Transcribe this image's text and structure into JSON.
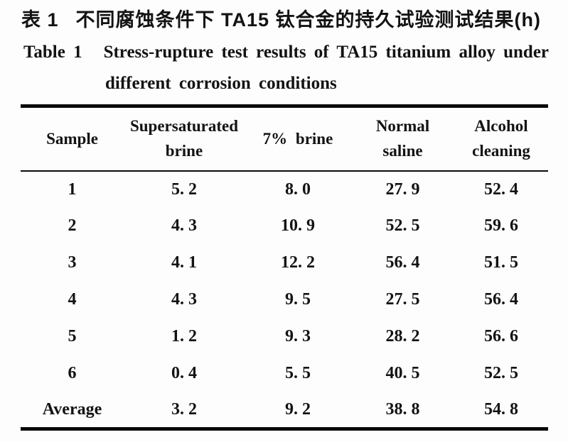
{
  "titles": {
    "zh_label": "表 1",
    "zh_text": "不同腐蚀条件下 TA15 钛合金的持久试验测试结果(h)",
    "en_label": "Table 1",
    "en_line1": "Stress-rupture test results of TA15 titanium alloy under",
    "en_line2": "different corrosion conditions"
  },
  "table": {
    "columns": [
      {
        "label": "Sample"
      },
      {
        "label": "Supersaturated\nbrine"
      },
      {
        "label": "7% brine"
      },
      {
        "label": "Normal\nsaline"
      },
      {
        "label": "Alcohol\ncleaning"
      }
    ],
    "rows": [
      {
        "sample": "1",
        "values": [
          "5. 2",
          "8. 0",
          "27. 9",
          "52. 4"
        ]
      },
      {
        "sample": "2",
        "values": [
          "4. 3",
          "10. 9",
          "52. 5",
          "59. 6"
        ]
      },
      {
        "sample": "3",
        "values": [
          "4. 1",
          "12. 2",
          "56. 4",
          "51. 5"
        ]
      },
      {
        "sample": "4",
        "values": [
          "4. 3",
          "9. 5",
          "27. 5",
          "56. 4"
        ]
      },
      {
        "sample": "5",
        "values": [
          "1. 2",
          "9. 3",
          "28. 2",
          "56. 6"
        ]
      },
      {
        "sample": "6",
        "values": [
          "0. 4",
          "5. 5",
          "40. 5",
          "52. 5"
        ]
      },
      {
        "sample": "Average",
        "values": [
          "3. 2",
          "9. 2",
          "38. 8",
          "54. 8"
        ]
      }
    ]
  }
}
